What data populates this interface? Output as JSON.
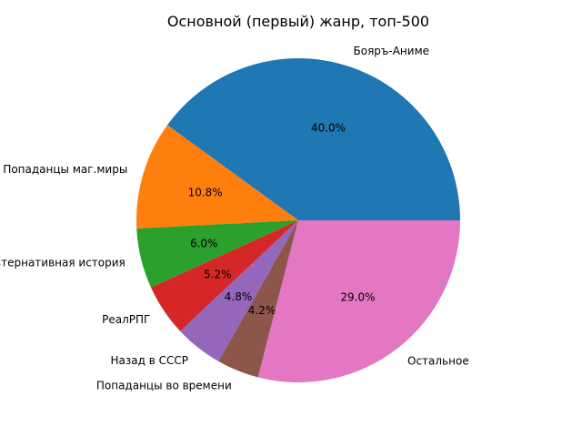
{
  "chart_data": {
    "type": "pie",
    "title": "Основной (первый) жанр, топ-500",
    "start_angle_deg": 0,
    "direction": "counterclockwise",
    "slices": [
      {
        "label": "Бояръ-Аниме",
        "value": 40.0,
        "pct_text": "40.0%",
        "color": "#1f77b4"
      },
      {
        "label": "Попаданцы маг.миры",
        "value": 10.8,
        "pct_text": "10.8%",
        "color": "#ff7f0e"
      },
      {
        "label": "Альтернативная история",
        "value": 6.0,
        "pct_text": "6.0%",
        "color": "#2ca02c"
      },
      {
        "label": "РеалРПГ",
        "value": 5.2,
        "pct_text": "5.2%",
        "color": "#d62728"
      },
      {
        "label": "Назад в СССР",
        "value": 4.8,
        "pct_text": "4.8%",
        "color": "#9467bd"
      },
      {
        "label": "Попаданцы во времени",
        "value": 4.2,
        "pct_text": "4.2%",
        "color": "#8c564b"
      },
      {
        "label": "Остальное",
        "value": 29.0,
        "pct_text": "29.0%",
        "color": "#e377c2"
      }
    ]
  }
}
